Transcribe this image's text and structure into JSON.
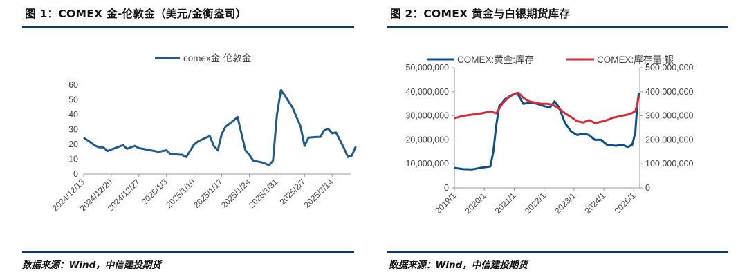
{
  "figures": [
    {
      "title": "图 1：COMEX 金-伦敦金（美元/金衡盎司）",
      "source": "数据来源：Wind，中信建投期货"
    },
    {
      "title": "图 2：COMEX 黄金与白银期货库存",
      "source": "数据来源：Wind，中信建投期货"
    }
  ],
  "chart_data": [
    {
      "type": "line",
      "title": "",
      "xlabel": "",
      "ylabel": "",
      "ylim": [
        0,
        60
      ],
      "yticks": [
        0,
        10,
        20,
        30,
        40,
        50,
        60
      ],
      "x_tick_labels": [
        "2024/12/13",
        "2024/12/20",
        "2024/12/27",
        "2025/1/3",
        "2025/1/10",
        "2025/1/17",
        "2025/1/24",
        "2025/1/31",
        "2025/2/7",
        "2025/2/14"
      ],
      "x_range_days": [
        0,
        67
      ],
      "x_unit": "days since 2024/12/13",
      "legend": "top-center",
      "color": "#1f5a8a",
      "series": [
        {
          "name": "comex金-伦敦金",
          "points": [
            [
              0,
              24.5
            ],
            [
              3,
              19
            ],
            [
              4,
              18
            ],
            [
              5,
              18
            ],
            [
              6,
              15.5
            ],
            [
              7,
              16.5
            ],
            [
              9,
              18.5
            ],
            [
              10,
              19.5
            ],
            [
              11,
              17
            ],
            [
              13,
              19
            ],
            [
              14,
              17.5
            ],
            [
              17,
              16
            ],
            [
              18,
              15.5
            ],
            [
              19,
              15
            ],
            [
              20,
              15.5
            ],
            [
              21,
              16
            ],
            [
              22,
              13.5
            ],
            [
              25,
              13
            ],
            [
              26,
              11.5
            ],
            [
              28,
              20
            ],
            [
              29,
              22
            ],
            [
              31,
              24.5
            ],
            [
              32,
              25.5
            ],
            [
              33,
              19
            ],
            [
              34,
              16
            ],
            [
              35,
              27
            ],
            [
              36,
              32
            ],
            [
              38,
              36
            ],
            [
              39,
              38.5
            ],
            [
              41,
              16
            ],
            [
              42,
              13
            ],
            [
              43,
              9
            ],
            [
              45,
              8
            ],
            [
              46,
              7
            ],
            [
              47,
              6
            ],
            [
              48,
              9
            ],
            [
              49,
              40
            ],
            [
              50,
              56.5
            ],
            [
              51,
              53
            ],
            [
              53,
              44.5
            ],
            [
              55,
              32
            ],
            [
              56,
              19
            ],
            [
              57,
              24.5
            ],
            [
              59,
              25
            ],
            [
              60,
              25
            ],
            [
              61,
              29.5
            ],
            [
              62,
              30.5
            ],
            [
              63,
              27.5
            ],
            [
              64,
              28
            ],
            [
              66,
              17.5
            ],
            [
              67,
              11.5
            ],
            [
              68,
              12.5
            ],
            [
              69,
              18.5
            ]
          ]
        }
      ]
    },
    {
      "type": "line",
      "title": "",
      "xlabel": "",
      "ylabel_left": "",
      "ylabel_right": "",
      "ylim_left": [
        0,
        50000000
      ],
      "ylim_right": [
        0,
        500000000
      ],
      "yticks_left": [
        "0",
        "10,000,000",
        "20,000,000",
        "30,000,000",
        "40,000,000",
        "50,000,000"
      ],
      "yticks_right": [
        "0",
        "100,000,000",
        "200,000,000",
        "300,000,000",
        "400,000,000",
        "500,000,000"
      ],
      "x_tick_labels": [
        "2019/1",
        "2020/1",
        "2021/1",
        "2022/1",
        "2023/1",
        "2024/1",
        "2025/1"
      ],
      "x_range_years": [
        2019.0,
        2025.2
      ],
      "legend": "top",
      "series": [
        {
          "name": "COMEX:黄金:库存",
          "axis": "left",
          "color": "#0b4f8a",
          "points": [
            [
              2019.0,
              8300000
            ],
            [
              2019.3,
              7800000
            ],
            [
              2019.6,
              7700000
            ],
            [
              2019.9,
              8400000
            ],
            [
              2020.2,
              8900000
            ],
            [
              2020.3,
              15000000
            ],
            [
              2020.4,
              26000000
            ],
            [
              2020.5,
              34000000
            ],
            [
              2020.7,
              37000000
            ],
            [
              2020.9,
              38500000
            ],
            [
              2021.1,
              39500000
            ],
            [
              2021.3,
              35000000
            ],
            [
              2021.6,
              35500000
            ],
            [
              2021.9,
              34500000
            ],
            [
              2022.0,
              34000000
            ],
            [
              2022.2,
              33500000
            ],
            [
              2022.35,
              36000000
            ],
            [
              2022.5,
              33500000
            ],
            [
              2022.7,
              27000000
            ],
            [
              2022.9,
              23500000
            ],
            [
              2023.1,
              22000000
            ],
            [
              2023.3,
              22500000
            ],
            [
              2023.5,
              22000000
            ],
            [
              2023.7,
              20000000
            ],
            [
              2023.9,
              20000000
            ],
            [
              2024.1,
              18000000
            ],
            [
              2024.4,
              17500000
            ],
            [
              2024.6,
              18000000
            ],
            [
              2024.8,
              17000000
            ],
            [
              2024.95,
              18000000
            ],
            [
              2025.05,
              23000000
            ],
            [
              2025.12,
              35000000
            ],
            [
              2025.17,
              39500000
            ]
          ]
        },
        {
          "name": "COMEX:库存量:银",
          "axis": "right",
          "color": "#d62b3b",
          "points": [
            [
              2019.0,
              290000000
            ],
            [
              2019.3,
              300000000
            ],
            [
              2019.6,
              305000000
            ],
            [
              2019.9,
              310000000
            ],
            [
              2020.2,
              318000000
            ],
            [
              2020.4,
              310000000
            ],
            [
              2020.6,
              350000000
            ],
            [
              2020.8,
              375000000
            ],
            [
              2021.0,
              392000000
            ],
            [
              2021.15,
              395000000
            ],
            [
              2021.3,
              375000000
            ],
            [
              2021.5,
              360000000
            ],
            [
              2021.7,
              355000000
            ],
            [
              2021.9,
              350000000
            ],
            [
              2022.1,
              350000000
            ],
            [
              2022.3,
              345000000
            ],
            [
              2022.5,
              330000000
            ],
            [
              2022.7,
              310000000
            ],
            [
              2022.9,
              295000000
            ],
            [
              2023.1,
              278000000
            ],
            [
              2023.3,
              272000000
            ],
            [
              2023.5,
              282000000
            ],
            [
              2023.7,
              270000000
            ],
            [
              2023.9,
              275000000
            ],
            [
              2024.1,
              282000000
            ],
            [
              2024.3,
              292000000
            ],
            [
              2024.6,
              300000000
            ],
            [
              2024.8,
              305000000
            ],
            [
              2024.95,
              312000000
            ],
            [
              2025.05,
              318000000
            ],
            [
              2025.12,
              350000000
            ],
            [
              2025.17,
              382000000
            ]
          ]
        }
      ]
    }
  ]
}
